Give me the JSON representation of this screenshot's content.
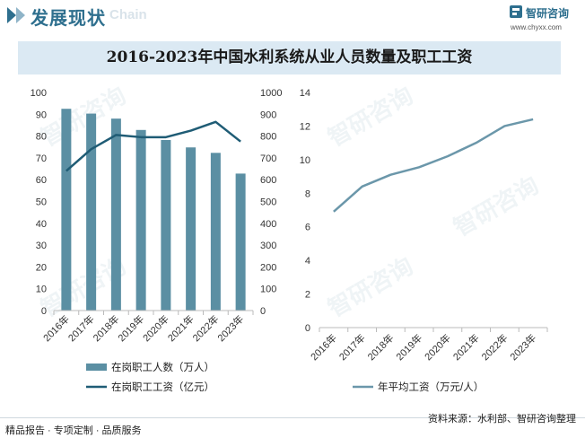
{
  "header": {
    "section_title": "发展现状",
    "section_subtitle": "Chain",
    "brand_name": "智研咨询",
    "brand_url": "www.chyxx.com",
    "brand_color": "#2e6f8e"
  },
  "watermark_text": "智研咨询",
  "footer": {
    "left": "精品报告 · 专项定制 · 品质服务",
    "source": "资料来源：水利部、智研咨询整理"
  },
  "chart_title": "2016-2023年中国水利系统从业人员数量及职工工资",
  "chart_data": [
    {
      "type": "bar+line",
      "categories": [
        "2016年",
        "2017年",
        "2018年",
        "2019年",
        "2020年",
        "2021年",
        "2022年",
        "2023年"
      ],
      "series": [
        {
          "name": "在岗职工人数（万人）",
          "type": "bar",
          "axis": "left",
          "color": "#5b8fa3",
          "values": [
            92.5,
            90.3,
            88.0,
            82.8,
            78.2,
            74.8,
            72.3,
            62.8
          ]
        },
        {
          "name": "在岗职工工资（亿元）",
          "type": "line",
          "axis": "right",
          "color": "#1f5c75",
          "values": [
            640,
            740,
            805,
            795,
            795,
            825,
            865,
            775
          ]
        }
      ],
      "ylim_left": [
        0,
        100
      ],
      "yticks_left": [
        "0",
        "10",
        "20",
        "30",
        "40",
        "50",
        "60",
        "70",
        "80",
        "90",
        "100"
      ],
      "ylim_right": [
        0,
        1000
      ],
      "yticks_right": [
        "0",
        "100",
        "200",
        "300",
        "400",
        "500",
        "600",
        "700",
        "800",
        "900",
        "1000"
      ],
      "legend_position": "bottom",
      "grid": false
    },
    {
      "type": "line",
      "categories": [
        "2016年",
        "2017年",
        "2018年",
        "2019年",
        "2020年",
        "2021年",
        "2022年",
        "2023年"
      ],
      "series": [
        {
          "name": "年平均工资（万元/人）",
          "color": "#6b97aa",
          "values": [
            6.9,
            8.4,
            9.1,
            9.55,
            10.2,
            11.0,
            12.0,
            12.4
          ]
        }
      ],
      "ylim": [
        0,
        14
      ],
      "yticks": [
        "0",
        "2",
        "4",
        "6",
        "8",
        "10",
        "12",
        "14"
      ],
      "legend_position": "bottom",
      "grid": false
    }
  ]
}
